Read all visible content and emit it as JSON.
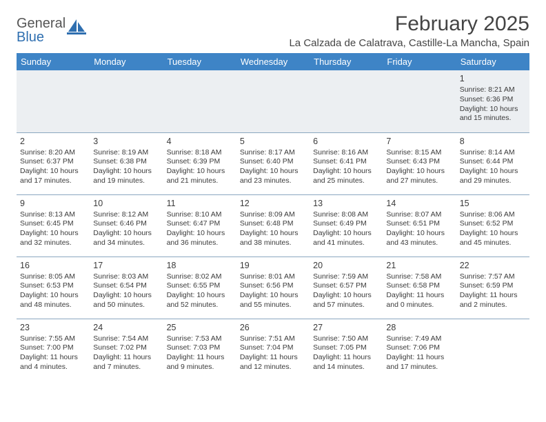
{
  "logo": {
    "line1": "General",
    "line2": "Blue"
  },
  "title": "February 2025",
  "location": "La Calzada de Calatrava, Castille-La Mancha, Spain",
  "colors": {
    "header_bg": "#3e84c6",
    "header_text": "#ffffff",
    "row_border": "#8aa6bf",
    "band_bg": "#eceff2",
    "text": "#3a3a3a",
    "logo_accent": "#2f6fb0",
    "page_bg": "#ffffff"
  },
  "columns": [
    "Sunday",
    "Monday",
    "Tuesday",
    "Wednesday",
    "Thursday",
    "Friday",
    "Saturday"
  ],
  "weeks": [
    [
      null,
      null,
      null,
      null,
      null,
      null,
      {
        "d": "1",
        "sr": "8:21 AM",
        "ss": "6:36 PM",
        "dl": "10 hours and 15 minutes."
      }
    ],
    [
      {
        "d": "2",
        "sr": "8:20 AM",
        "ss": "6:37 PM",
        "dl": "10 hours and 17 minutes."
      },
      {
        "d": "3",
        "sr": "8:19 AM",
        "ss": "6:38 PM",
        "dl": "10 hours and 19 minutes."
      },
      {
        "d": "4",
        "sr": "8:18 AM",
        "ss": "6:39 PM",
        "dl": "10 hours and 21 minutes."
      },
      {
        "d": "5",
        "sr": "8:17 AM",
        "ss": "6:40 PM",
        "dl": "10 hours and 23 minutes."
      },
      {
        "d": "6",
        "sr": "8:16 AM",
        "ss": "6:41 PM",
        "dl": "10 hours and 25 minutes."
      },
      {
        "d": "7",
        "sr": "8:15 AM",
        "ss": "6:43 PM",
        "dl": "10 hours and 27 minutes."
      },
      {
        "d": "8",
        "sr": "8:14 AM",
        "ss": "6:44 PM",
        "dl": "10 hours and 29 minutes."
      }
    ],
    [
      {
        "d": "9",
        "sr": "8:13 AM",
        "ss": "6:45 PM",
        "dl": "10 hours and 32 minutes."
      },
      {
        "d": "10",
        "sr": "8:12 AM",
        "ss": "6:46 PM",
        "dl": "10 hours and 34 minutes."
      },
      {
        "d": "11",
        "sr": "8:10 AM",
        "ss": "6:47 PM",
        "dl": "10 hours and 36 minutes."
      },
      {
        "d": "12",
        "sr": "8:09 AM",
        "ss": "6:48 PM",
        "dl": "10 hours and 38 minutes."
      },
      {
        "d": "13",
        "sr": "8:08 AM",
        "ss": "6:49 PM",
        "dl": "10 hours and 41 minutes."
      },
      {
        "d": "14",
        "sr": "8:07 AM",
        "ss": "6:51 PM",
        "dl": "10 hours and 43 minutes."
      },
      {
        "d": "15",
        "sr": "8:06 AM",
        "ss": "6:52 PM",
        "dl": "10 hours and 45 minutes."
      }
    ],
    [
      {
        "d": "16",
        "sr": "8:05 AM",
        "ss": "6:53 PM",
        "dl": "10 hours and 48 minutes."
      },
      {
        "d": "17",
        "sr": "8:03 AM",
        "ss": "6:54 PM",
        "dl": "10 hours and 50 minutes."
      },
      {
        "d": "18",
        "sr": "8:02 AM",
        "ss": "6:55 PM",
        "dl": "10 hours and 52 minutes."
      },
      {
        "d": "19",
        "sr": "8:01 AM",
        "ss": "6:56 PM",
        "dl": "10 hours and 55 minutes."
      },
      {
        "d": "20",
        "sr": "7:59 AM",
        "ss": "6:57 PM",
        "dl": "10 hours and 57 minutes."
      },
      {
        "d": "21",
        "sr": "7:58 AM",
        "ss": "6:58 PM",
        "dl": "11 hours and 0 minutes."
      },
      {
        "d": "22",
        "sr": "7:57 AM",
        "ss": "6:59 PM",
        "dl": "11 hours and 2 minutes."
      }
    ],
    [
      {
        "d": "23",
        "sr": "7:55 AM",
        "ss": "7:00 PM",
        "dl": "11 hours and 4 minutes."
      },
      {
        "d": "24",
        "sr": "7:54 AM",
        "ss": "7:02 PM",
        "dl": "11 hours and 7 minutes."
      },
      {
        "d": "25",
        "sr": "7:53 AM",
        "ss": "7:03 PM",
        "dl": "11 hours and 9 minutes."
      },
      {
        "d": "26",
        "sr": "7:51 AM",
        "ss": "7:04 PM",
        "dl": "11 hours and 12 minutes."
      },
      {
        "d": "27",
        "sr": "7:50 AM",
        "ss": "7:05 PM",
        "dl": "11 hours and 14 minutes."
      },
      {
        "d": "28",
        "sr": "7:49 AM",
        "ss": "7:06 PM",
        "dl": "11 hours and 17 minutes."
      },
      null
    ]
  ],
  "labels": {
    "sunrise": "Sunrise:",
    "sunset": "Sunset:",
    "daylight": "Daylight:"
  }
}
